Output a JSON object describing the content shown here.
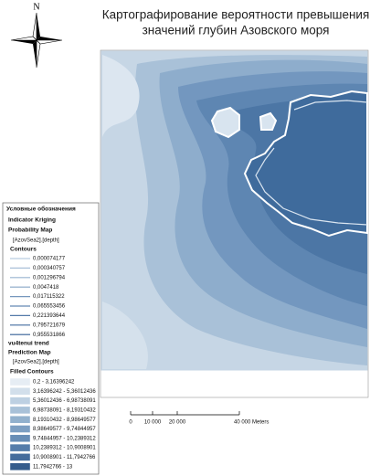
{
  "title": [
    "Картографирование вероятности превышения",
    "значений глубин Азовского моря"
  ],
  "north": "N",
  "legend": {
    "heading": "Условные обозначения",
    "layer1": "Indicator Kriging",
    "layer1_type": "Probability Map",
    "layer1_field": "[AzovSea2].[depth]",
    "contours_title": "Contours",
    "contours": [
      {
        "label": "0,000074177",
        "color": "#b9cde0"
      },
      {
        "label": "0,000340757",
        "color": "#a9c0d8"
      },
      {
        "label": "0,001296794",
        "color": "#98b3cf"
      },
      {
        "label": "0,0047418",
        "color": "#87a5c6"
      },
      {
        "label": "0,017115322",
        "color": "#7697bd"
      },
      {
        "label": "0,065553456",
        "color": "#6589b3"
      },
      {
        "label": "0,221393644",
        "color": "#547ba9"
      },
      {
        "label": "0,795721679",
        "color": "#436d9f"
      },
      {
        "label": "0,955531866",
        "color": "#335f95"
      }
    ],
    "layer2": "vu4tenui trend",
    "layer2_type": "Prediction Map",
    "layer2_field": "[AzovSea2].[depth]",
    "filled_title": "Filled Contours",
    "filled": [
      {
        "label": "0,2 - 3,16396242",
        "color": "#e6edf4"
      },
      {
        "label": "3,16396242 - 5,36012436",
        "color": "#d2dfeb"
      },
      {
        "label": "5,36012436 - 6,98738091",
        "color": "#bdd0e2"
      },
      {
        "label": "6,98738091 - 8,19310432",
        "color": "#a8c1d8"
      },
      {
        "label": "8,19310432 - 8,98649577",
        "color": "#92b1cd"
      },
      {
        "label": "8,98649577 - 9,74844957",
        "color": "#7d9fc2"
      },
      {
        "label": "9,74844957 - 10,2389312",
        "color": "#688eb6"
      },
      {
        "label": "10,2389312 - 10,9008901",
        "color": "#557daa"
      },
      {
        "label": "10,9008901 - 11,7942766",
        "color": "#446c9c"
      },
      {
        "label": "11,7942766 - 13",
        "color": "#355c8c"
      }
    ]
  },
  "scale": {
    "labels": [
      "0",
      "10 000",
      "20 000",
      "40 000 Meters"
    ]
  }
}
